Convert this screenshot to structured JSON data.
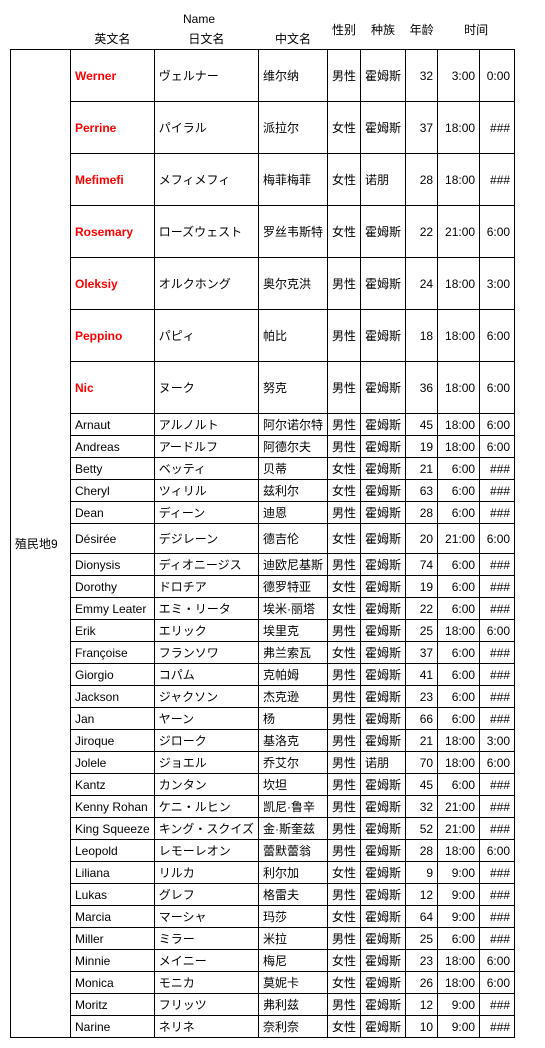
{
  "headers": {
    "group_name": "Name",
    "en_name": "英文名",
    "jp_name": "日文名",
    "cn_name": "中文名",
    "gender": "性别",
    "race": "种族",
    "age": "年龄",
    "time": "时间"
  },
  "section_label": "殖民地9",
  "colors": {
    "special_text": "#ff0000",
    "border": "#000000",
    "background": "#ffffff"
  },
  "col_widths": {
    "section": 60,
    "en": 75,
    "jp": 75,
    "cn": 68,
    "gender": 27,
    "race": 35,
    "age": 27,
    "time1": 42,
    "time2": 35
  },
  "rows": [
    {
      "en": "Werner",
      "jp": "ヴェルナー",
      "cn": "维尔纳",
      "gender": "男性",
      "race": "霍姆斯",
      "age": "32",
      "t1": "3:00",
      "t2": "0:00",
      "special": true,
      "tall": true
    },
    {
      "en": "Perrine",
      "jp": "パイラル",
      "cn": "派拉尔",
      "gender": "女性",
      "race": "霍姆斯",
      "age": "37",
      "t1": "18:00",
      "t2": "###",
      "special": true,
      "tall": true
    },
    {
      "en": "Mefimefi",
      "jp": "メフィメフィ",
      "cn": "梅菲梅菲",
      "gender": "女性",
      "race": "诺朋",
      "age": "28",
      "t1": "18:00",
      "t2": "###",
      "special": true,
      "tall": true
    },
    {
      "en": "Rosemary",
      "jp": "ローズウェスト",
      "cn": "罗丝韦斯特",
      "gender": "女性",
      "race": "霍姆斯",
      "age": "22",
      "t1": "21:00",
      "t2": "6:00",
      "special": true,
      "tall": true
    },
    {
      "en": "Oleksiy",
      "jp": "オルクホング",
      "cn": "奥尔克洪",
      "gender": "男性",
      "race": "霍姆斯",
      "age": "24",
      "t1": "18:00",
      "t2": "3:00",
      "special": true,
      "tall": true
    },
    {
      "en": "Peppino",
      "jp": "パピィ",
      "cn": "帕比",
      "gender": "男性",
      "race": "霍姆斯",
      "age": "18",
      "t1": "18:00",
      "t2": "6:00",
      "special": true,
      "tall": true
    },
    {
      "en": "Nic",
      "jp": "ヌーク",
      "cn": "努克",
      "gender": "男性",
      "race": "霍姆斯",
      "age": "36",
      "t1": "18:00",
      "t2": "6:00",
      "special": true,
      "tall": true
    },
    {
      "en": "Arnaut",
      "jp": "アルノルト",
      "cn": "阿尔诺尔特",
      "gender": "男性",
      "race": "霍姆斯",
      "age": "45",
      "t1": "18:00",
      "t2": "6:00",
      "special": false
    },
    {
      "en": "Andreas",
      "jp": "アードルフ",
      "cn": "阿德尔夫",
      "gender": "男性",
      "race": "霍姆斯",
      "age": "19",
      "t1": "18:00",
      "t2": "6:00",
      "special": false
    },
    {
      "en": "Betty",
      "jp": "ベッティ",
      "cn": "贝蒂",
      "gender": "女性",
      "race": "霍姆斯",
      "age": "21",
      "t1": "6:00",
      "t2": "###",
      "special": false
    },
    {
      "en": "Cheryl",
      "jp": "ツィリル",
      "cn": "兹利尔",
      "gender": "女性",
      "race": "霍姆斯",
      "age": "63",
      "t1": "6:00",
      "t2": "###",
      "special": false
    },
    {
      "en": "Dean",
      "jp": "ディーン",
      "cn": "迪恩",
      "gender": "男性",
      "race": "霍姆斯",
      "age": "28",
      "t1": "6:00",
      "t2": "###",
      "special": false
    },
    {
      "en": "Désirée",
      "jp": "デジレーン",
      "cn": "德吉伦",
      "gender": "女性",
      "race": "霍姆斯",
      "age": "20",
      "t1": "21:00",
      "t2": "6:00",
      "special": false,
      "tall": true,
      "short_tall": true
    },
    {
      "en": "Dionysis",
      "jp": "ディオニージス",
      "cn": "迪欧尼基斯",
      "gender": "男性",
      "race": "霍姆斯",
      "age": "74",
      "t1": "6:00",
      "t2": "###",
      "special": false
    },
    {
      "en": "Dorothy",
      "jp": "ドロチア",
      "cn": "德罗特亚",
      "gender": "女性",
      "race": "霍姆斯",
      "age": "19",
      "t1": "6:00",
      "t2": "###",
      "special": false
    },
    {
      "en": "Emmy Leater",
      "jp": "エミ・リータ",
      "cn": "埃米·丽塔",
      "gender": "女性",
      "race": "霍姆斯",
      "age": "22",
      "t1": "6:00",
      "t2": "###",
      "special": false
    },
    {
      "en": "Erik",
      "jp": "エリック",
      "cn": "埃里克",
      "gender": "男性",
      "race": "霍姆斯",
      "age": "25",
      "t1": "18:00",
      "t2": "6:00",
      "special": false
    },
    {
      "en": "Françoise",
      "jp": "フランソワ",
      "cn": "弗兰索瓦",
      "gender": "女性",
      "race": "霍姆斯",
      "age": "37",
      "t1": "6:00",
      "t2": "###",
      "special": false
    },
    {
      "en": "Giorgio",
      "jp": "コパム",
      "cn": "克帕姆",
      "gender": "男性",
      "race": "霍姆斯",
      "age": "41",
      "t1": "6:00",
      "t2": "###",
      "special": false
    },
    {
      "en": "Jackson",
      "jp": "ジャクソン",
      "cn": "杰克逊",
      "gender": "男性",
      "race": "霍姆斯",
      "age": "23",
      "t1": "6:00",
      "t2": "###",
      "special": false
    },
    {
      "en": "Jan",
      "jp": "ヤーン",
      "cn": "杨",
      "gender": "男性",
      "race": "霍姆斯",
      "age": "66",
      "t1": "6:00",
      "t2": "###",
      "special": false
    },
    {
      "en": "Jiroque",
      "jp": "ジローク",
      "cn": "基洛克",
      "gender": "男性",
      "race": "霍姆斯",
      "age": "21",
      "t1": "18:00",
      "t2": "3:00",
      "special": false
    },
    {
      "en": "Jolele",
      "jp": "ジョエル",
      "cn": "乔艾尔",
      "gender": "男性",
      "race": "诺朋",
      "age": "70",
      "t1": "18:00",
      "t2": "6:00",
      "special": false
    },
    {
      "en": "Kantz",
      "jp": "カンタン",
      "cn": "坎坦",
      "gender": "男性",
      "race": "霍姆斯",
      "age": "45",
      "t1": "6:00",
      "t2": "###",
      "special": false
    },
    {
      "en": "Kenny Rohan",
      "jp": "ケニ・ルヒン",
      "cn": "凯尼·鲁辛",
      "gender": "男性",
      "race": "霍姆斯",
      "age": "32",
      "t1": "21:00",
      "t2": "###",
      "special": false
    },
    {
      "en": "King Squeeze",
      "jp": "キング・スクイズ",
      "cn": "金·斯奎兹",
      "gender": "男性",
      "race": "霍姆斯",
      "age": "52",
      "t1": "21:00",
      "t2": "###",
      "special": false
    },
    {
      "en": "Leopold",
      "jp": "レモーレオン",
      "cn": "蕾默蕾翁",
      "gender": "男性",
      "race": "霍姆斯",
      "age": "28",
      "t1": "18:00",
      "t2": "6:00",
      "special": false
    },
    {
      "en": "Liliana",
      "jp": "リルカ",
      "cn": "利尔加",
      "gender": "女性",
      "race": "霍姆斯",
      "age": "9",
      "t1": "9:00",
      "t2": "###",
      "special": false
    },
    {
      "en": "Lukas",
      "jp": "グレフ",
      "cn": "格雷夫",
      "gender": "男性",
      "race": "霍姆斯",
      "age": "12",
      "t1": "9:00",
      "t2": "###",
      "special": false
    },
    {
      "en": "Marcia",
      "jp": "マーシャ",
      "cn": "玛莎",
      "gender": "女性",
      "race": "霍姆斯",
      "age": "64",
      "t1": "9:00",
      "t2": "###",
      "special": false
    },
    {
      "en": "Miller",
      "jp": "ミラー",
      "cn": "米拉",
      "gender": "男性",
      "race": "霍姆斯",
      "age": "25",
      "t1": "6:00",
      "t2": "###",
      "special": false
    },
    {
      "en": "Minnie",
      "jp": "メイニー",
      "cn": "梅尼",
      "gender": "女性",
      "race": "霍姆斯",
      "age": "23",
      "t1": "18:00",
      "t2": "6:00",
      "special": false
    },
    {
      "en": "Monica",
      "jp": "モニカ",
      "cn": "莫妮卡",
      "gender": "女性",
      "race": "霍姆斯",
      "age": "26",
      "t1": "18:00",
      "t2": "6:00",
      "special": false
    },
    {
      "en": "Moritz",
      "jp": "フリッツ",
      "cn": "弗利兹",
      "gender": "男性",
      "race": "霍姆斯",
      "age": "12",
      "t1": "9:00",
      "t2": "###",
      "special": false
    },
    {
      "en": "Narine",
      "jp": "ネリネ",
      "cn": "奈利奈",
      "gender": "女性",
      "race": "霍姆斯",
      "age": "10",
      "t1": "9:00",
      "t2": "###",
      "special": false
    }
  ]
}
